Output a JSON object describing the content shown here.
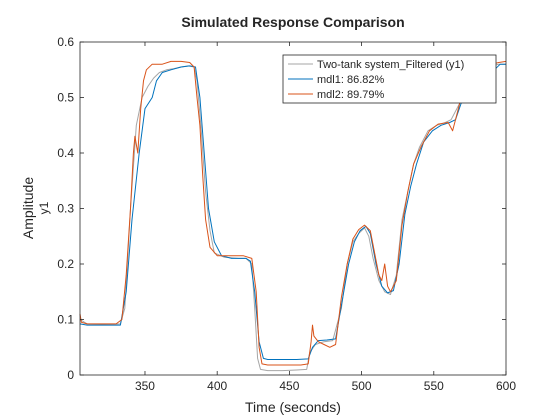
{
  "chart_data": {
    "type": "line",
    "title": "Simulated Response Comparison",
    "xlabel": "Time (seconds)",
    "ylabel": "Amplitude",
    "ylabel_channel": "y1",
    "xlim": [
      305,
      600
    ],
    "ylim": [
      0,
      0.6
    ],
    "xticks": [
      350,
      400,
      450,
      500,
      550,
      600
    ],
    "yticks": [
      0,
      0.1,
      0.2,
      0.3,
      0.4,
      0.5,
      0.6
    ],
    "grid": false,
    "legend_position": "top-right",
    "series": [
      {
        "name": "Two-tank system_Filtered (y1)",
        "color": "#a6a6a6",
        "points": [
          [
            305,
            0.1
          ],
          [
            310,
            0.092
          ],
          [
            320,
            0.091
          ],
          [
            333,
            0.092
          ],
          [
            336,
            0.12
          ],
          [
            340,
            0.3
          ],
          [
            344,
            0.45
          ],
          [
            348,
            0.5
          ],
          [
            352,
            0.52
          ],
          [
            356,
            0.535
          ],
          [
            360,
            0.545
          ],
          [
            365,
            0.55
          ],
          [
            370,
            0.552
          ],
          [
            375,
            0.555
          ],
          [
            380,
            0.557
          ],
          [
            384,
            0.555
          ],
          [
            386,
            0.53
          ],
          [
            389,
            0.44
          ],
          [
            392,
            0.33
          ],
          [
            395,
            0.26
          ],
          [
            398,
            0.22
          ],
          [
            405,
            0.212
          ],
          [
            415,
            0.21
          ],
          [
            420,
            0.21
          ],
          [
            424,
            0.2
          ],
          [
            426,
            0.12
          ],
          [
            428,
            0.03
          ],
          [
            430,
            0.01
          ],
          [
            435,
            0.008
          ],
          [
            445,
            0.008
          ],
          [
            455,
            0.009
          ],
          [
            462,
            0.01
          ],
          [
            464,
            0.04
          ],
          [
            468,
            0.055
          ],
          [
            474,
            0.06
          ],
          [
            480,
            0.062
          ],
          [
            486,
            0.12
          ],
          [
            490,
            0.2
          ],
          [
            494,
            0.24
          ],
          [
            498,
            0.255
          ],
          [
            502,
            0.265
          ],
          [
            505,
            0.25
          ],
          [
            508,
            0.21
          ],
          [
            512,
            0.17
          ],
          [
            516,
            0.15
          ],
          [
            520,
            0.145
          ],
          [
            524,
            0.18
          ],
          [
            528,
            0.28
          ],
          [
            532,
            0.33
          ],
          [
            536,
            0.38
          ],
          [
            540,
            0.41
          ],
          [
            546,
            0.44
          ],
          [
            552,
            0.45
          ],
          [
            558,
            0.455
          ],
          [
            562,
            0.46
          ],
          [
            566,
            0.48
          ],
          [
            570,
            0.5
          ],
          [
            574,
            0.52
          ],
          [
            578,
            0.54
          ],
          [
            582,
            0.545
          ],
          [
            588,
            0.555
          ],
          [
            595,
            0.56
          ],
          [
            600,
            0.56
          ]
        ]
      },
      {
        "name": "mdl1: 86.82%",
        "color": "#0072bd",
        "points": [
          [
            305,
            0.092
          ],
          [
            310,
            0.09
          ],
          [
            333,
            0.09
          ],
          [
            337,
            0.15
          ],
          [
            341,
            0.28
          ],
          [
            346,
            0.4
          ],
          [
            350,
            0.48
          ],
          [
            355,
            0.5
          ],
          [
            358,
            0.53
          ],
          [
            362,
            0.545
          ],
          [
            368,
            0.55
          ],
          [
            375,
            0.555
          ],
          [
            381,
            0.557
          ],
          [
            385,
            0.555
          ],
          [
            388,
            0.5
          ],
          [
            391,
            0.4
          ],
          [
            394,
            0.3
          ],
          [
            398,
            0.24
          ],
          [
            403,
            0.215
          ],
          [
            410,
            0.21
          ],
          [
            420,
            0.21
          ],
          [
            423,
            0.205
          ],
          [
            426,
            0.15
          ],
          [
            429,
            0.06
          ],
          [
            432,
            0.03
          ],
          [
            435,
            0.028
          ],
          [
            445,
            0.028
          ],
          [
            455,
            0.028
          ],
          [
            463,
            0.029
          ],
          [
            466,
            0.05
          ],
          [
            470,
            0.062
          ],
          [
            476,
            0.063
          ],
          [
            482,
            0.065
          ],
          [
            487,
            0.14
          ],
          [
            491,
            0.2
          ],
          [
            495,
            0.24
          ],
          [
            499,
            0.26
          ],
          [
            503,
            0.268
          ],
          [
            506,
            0.255
          ],
          [
            510,
            0.2
          ],
          [
            514,
            0.16
          ],
          [
            518,
            0.148
          ],
          [
            522,
            0.152
          ],
          [
            526,
            0.2
          ],
          [
            530,
            0.29
          ],
          [
            534,
            0.34
          ],
          [
            538,
            0.38
          ],
          [
            543,
            0.42
          ],
          [
            549,
            0.44
          ],
          [
            555,
            0.45
          ],
          [
            561,
            0.455
          ],
          [
            565,
            0.46
          ],
          [
            569,
            0.49
          ],
          [
            573,
            0.5
          ],
          [
            577,
            0.52
          ],
          [
            581,
            0.535
          ],
          [
            586,
            0.545
          ],
          [
            592,
            0.55
          ],
          [
            596,
            0.56
          ],
          [
            600,
            0.56
          ]
        ]
      },
      {
        "name": "mdl2: 89.79%",
        "color": "#d95319",
        "points": [
          [
            305,
            0.11
          ],
          [
            306,
            0.095
          ],
          [
            310,
            0.092
          ],
          [
            330,
            0.092
          ],
          [
            334,
            0.1
          ],
          [
            337,
            0.18
          ],
          [
            340,
            0.3
          ],
          [
            342,
            0.4
          ],
          [
            343,
            0.43
          ],
          [
            345,
            0.4
          ],
          [
            347,
            0.48
          ],
          [
            349,
            0.53
          ],
          [
            351,
            0.55
          ],
          [
            355,
            0.56
          ],
          [
            362,
            0.56
          ],
          [
            368,
            0.565
          ],
          [
            375,
            0.565
          ],
          [
            381,
            0.563
          ],
          [
            384,
            0.555
          ],
          [
            386,
            0.5
          ],
          [
            388,
            0.45
          ],
          [
            390,
            0.36
          ],
          [
            392,
            0.28
          ],
          [
            395,
            0.23
          ],
          [
            400,
            0.215
          ],
          [
            410,
            0.215
          ],
          [
            418,
            0.215
          ],
          [
            424,
            0.21
          ],
          [
            427,
            0.15
          ],
          [
            429,
            0.05
          ],
          [
            431,
            0.02
          ],
          [
            435,
            0.018
          ],
          [
            445,
            0.018
          ],
          [
            458,
            0.018
          ],
          [
            463,
            0.02
          ],
          [
            465,
            0.06
          ],
          [
            466,
            0.09
          ],
          [
            467,
            0.07
          ],
          [
            470,
            0.06
          ],
          [
            474,
            0.055
          ],
          [
            478,
            0.05
          ],
          [
            482,
            0.055
          ],
          [
            486,
            0.14
          ],
          [
            490,
            0.2
          ],
          [
            494,
            0.245
          ],
          [
            498,
            0.262
          ],
          [
            502,
            0.27
          ],
          [
            506,
            0.26
          ],
          [
            509,
            0.22
          ],
          [
            512,
            0.18
          ],
          [
            514,
            0.17
          ],
          [
            516,
            0.2
          ],
          [
            518,
            0.16
          ],
          [
            520,
            0.15
          ],
          [
            524,
            0.17
          ],
          [
            528,
            0.27
          ],
          [
            532,
            0.33
          ],
          [
            536,
            0.38
          ],
          [
            541,
            0.41
          ],
          [
            547,
            0.44
          ],
          [
            553,
            0.452
          ],
          [
            560,
            0.455
          ],
          [
            563,
            0.44
          ],
          [
            565,
            0.46
          ],
          [
            569,
            0.5
          ],
          [
            572,
            0.52
          ],
          [
            574,
            0.5
          ],
          [
            577,
            0.52
          ],
          [
            580,
            0.55
          ],
          [
            584,
            0.555
          ],
          [
            590,
            0.56
          ],
          [
            595,
            0.563
          ],
          [
            600,
            0.565
          ]
        ]
      }
    ]
  }
}
